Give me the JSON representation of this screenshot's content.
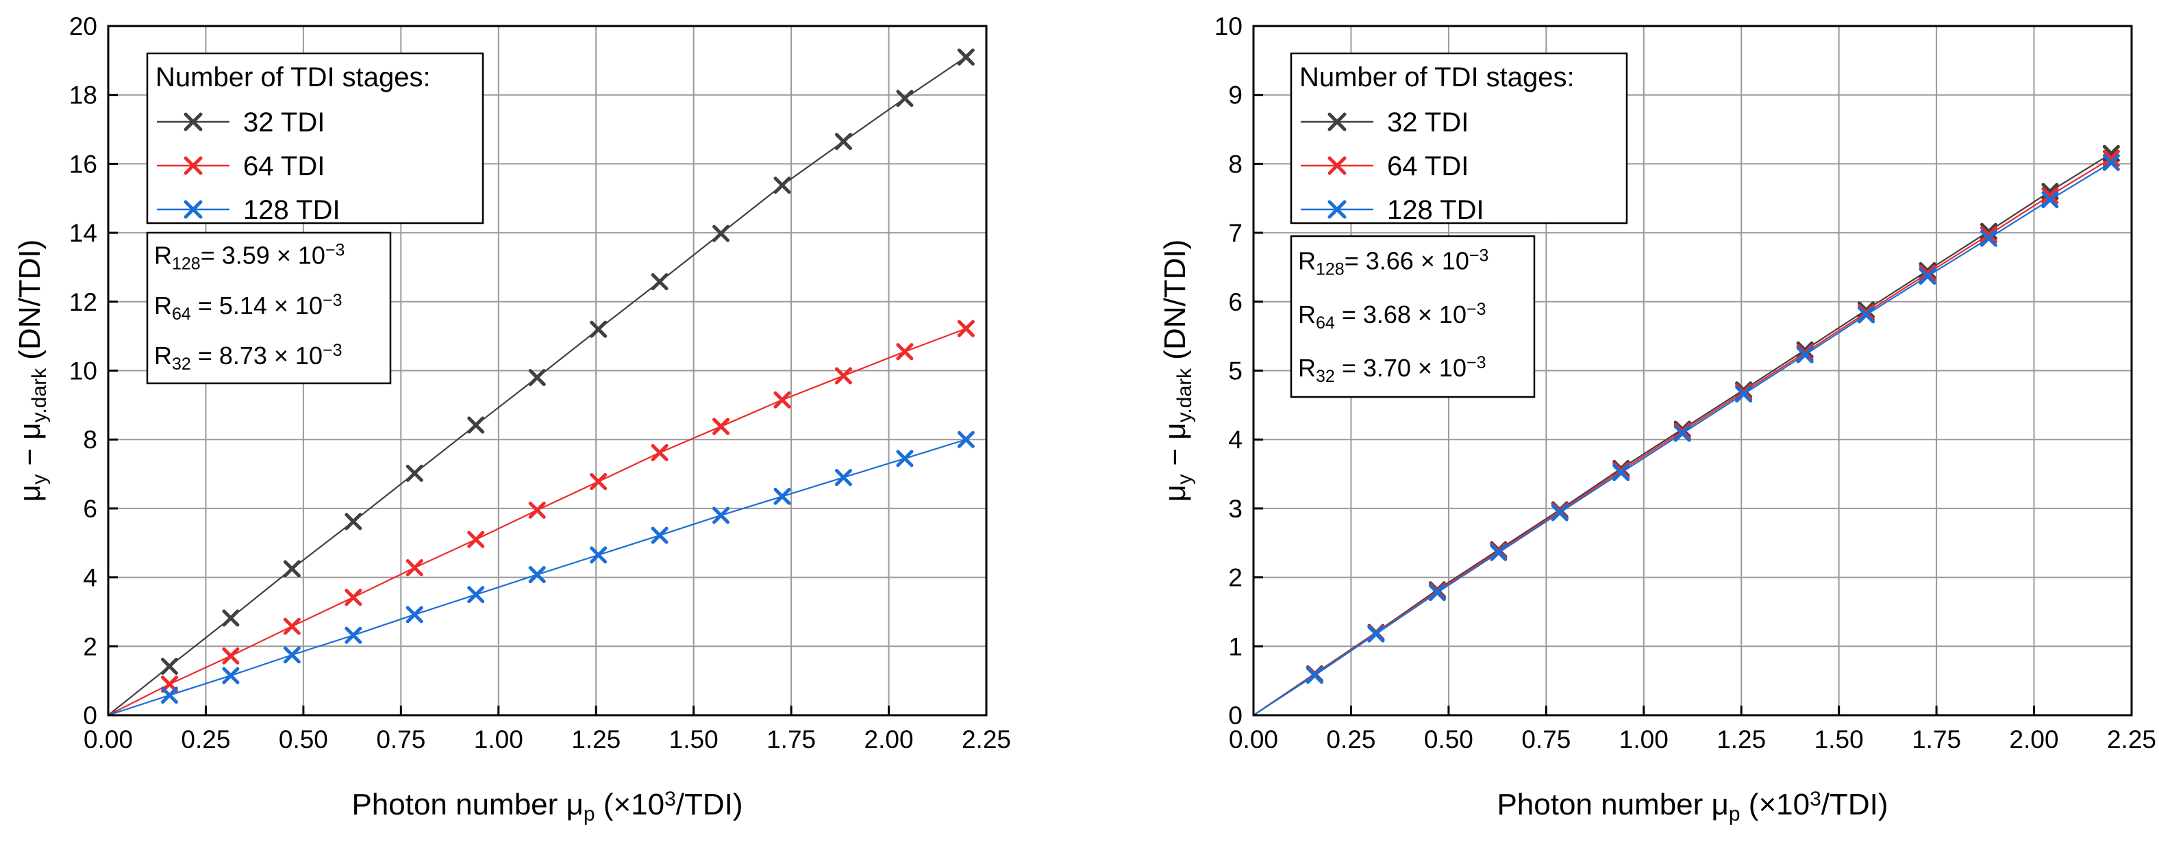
{
  "chart_data": [
    {
      "type": "line",
      "xlabel": "Photon number μp (×10³/TDI)",
      "ylabel": "μy − μy.dark (DN/TDI)",
      "xlim": [
        0,
        2.25
      ],
      "ylim": [
        0,
        20
      ],
      "grid": true,
      "xticks": [
        "0.00",
        "0.25",
        "0.50",
        "0.75",
        "1.00",
        "1.25",
        "1.50",
        "1.75",
        "2.00",
        "2.25"
      ],
      "yticks": [
        "0",
        "2",
        "4",
        "6",
        "8",
        "10",
        "12",
        "14",
        "16",
        "18",
        "20"
      ],
      "x": [
        0,
        0.157,
        0.314,
        0.471,
        0.628,
        0.785,
        0.942,
        1.099,
        1.256,
        1.413,
        1.57,
        1.727,
        1.884,
        2.041,
        2.198
      ],
      "legend": {
        "title": "Number of TDI stages:",
        "placement": "top-left"
      },
      "series": [
        {
          "name": "32 TDI",
          "color": "#404040",
          "values": [
            0,
            1.42,
            2.82,
            4.25,
            5.62,
            7.02,
            8.42,
            9.8,
            11.2,
            12.58,
            13.98,
            15.38,
            16.65,
            17.9,
            19.1
          ]
        },
        {
          "name": "64 TDI",
          "color": "#ee2b2b",
          "values": [
            0,
            0.9,
            1.72,
            2.58,
            3.42,
            4.28,
            5.1,
            5.95,
            6.78,
            7.62,
            8.38,
            9.15,
            9.85,
            10.55,
            11.22
          ]
        },
        {
          "name": "128 TDI",
          "color": "#1a6ed8",
          "values": [
            0,
            0.58,
            1.15,
            1.75,
            2.32,
            2.92,
            3.5,
            4.08,
            4.65,
            5.22,
            5.8,
            6.35,
            6.9,
            7.45,
            8.0
          ]
        }
      ],
      "annotation": [
        {
          "label": "R",
          "sub": "128",
          "text": "= 3.59 × 10",
          "exp": "−3"
        },
        {
          "label": "R",
          "sub": "64",
          "text": " = 5.14 × 10",
          "exp": "−3"
        },
        {
          "label": "R",
          "sub": "32",
          "text": " = 8.73 × 10",
          "exp": "−3"
        }
      ]
    },
    {
      "type": "line",
      "xlabel": "Photon number μp (×10³/TDI)",
      "ylabel": "μy − μy.dark (DN/TDI)",
      "xlim": [
        0,
        2.25
      ],
      "ylim": [
        0,
        10
      ],
      "grid": true,
      "xticks": [
        "0.00",
        "0.25",
        "0.50",
        "0.75",
        "1.00",
        "1.25",
        "1.50",
        "1.75",
        "2.00",
        "2.25"
      ],
      "yticks": [
        "0",
        "1",
        "2",
        "3",
        "4",
        "5",
        "6",
        "7",
        "8",
        "9",
        "10"
      ],
      "x": [
        0,
        0.157,
        0.314,
        0.471,
        0.628,
        0.785,
        0.942,
        1.099,
        1.256,
        1.413,
        1.57,
        1.727,
        1.884,
        2.041,
        2.198
      ],
      "legend": {
        "title": "Number of TDI stages:",
        "placement": "top-left"
      },
      "series": [
        {
          "name": "32 TDI",
          "color": "#404040",
          "values": [
            0,
            0.6,
            1.2,
            1.82,
            2.4,
            2.98,
            3.58,
            4.15,
            4.72,
            5.3,
            5.88,
            6.45,
            7.02,
            7.6,
            8.15
          ]
        },
        {
          "name": "64 TDI",
          "color": "#ee2b2b",
          "values": [
            0,
            0.59,
            1.19,
            1.8,
            2.38,
            2.96,
            3.55,
            4.12,
            4.69,
            5.26,
            5.84,
            6.41,
            6.97,
            7.54,
            8.08
          ]
        },
        {
          "name": "128 TDI",
          "color": "#1a6ed8",
          "values": [
            0,
            0.58,
            1.18,
            1.78,
            2.36,
            2.94,
            3.52,
            4.09,
            4.66,
            5.23,
            5.81,
            6.37,
            6.92,
            7.48,
            8.02
          ]
        }
      ],
      "annotation": [
        {
          "label": "R",
          "sub": "128",
          "text": "= 3.66 × 10",
          "exp": "−3"
        },
        {
          "label": "R",
          "sub": "64",
          "text": " = 3.68 × 10",
          "exp": "−3"
        },
        {
          "label": "R",
          "sub": "32",
          "text": " = 3.70 × 10",
          "exp": "−3"
        }
      ]
    }
  ]
}
